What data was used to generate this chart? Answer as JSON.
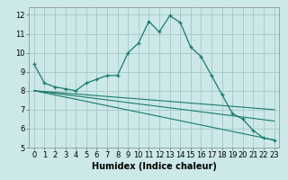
{
  "xlabel": "Humidex (Indice chaleur)",
  "ylabel": "",
  "background_color": "#cce8e8",
  "grid_color": "#aacccc",
  "line_color": "#1a7a6e",
  "xlim": [
    -0.5,
    23.5
  ],
  "ylim": [
    5,
    12.4
  ],
  "xticks": [
    0,
    1,
    2,
    3,
    4,
    5,
    6,
    7,
    8,
    9,
    10,
    11,
    12,
    13,
    14,
    15,
    16,
    17,
    18,
    19,
    20,
    21,
    22,
    23
  ],
  "yticks": [
    5,
    6,
    7,
    8,
    9,
    10,
    11,
    12
  ],
  "series1_x": [
    0,
    1,
    2,
    3,
    4,
    5,
    6,
    7,
    8,
    9,
    10,
    11,
    12,
    13,
    14,
    15,
    16,
    17,
    18,
    19,
    20,
    21,
    22,
    23
  ],
  "series1_y": [
    9.4,
    8.4,
    8.2,
    8.1,
    8.0,
    8.4,
    8.6,
    8.8,
    8.8,
    10.0,
    10.5,
    11.65,
    11.1,
    11.95,
    11.6,
    10.3,
    9.8,
    8.8,
    7.8,
    6.8,
    6.5,
    5.9,
    5.5,
    5.4
  ],
  "series2_x": [
    0,
    23
  ],
  "series2_y": [
    8.0,
    5.4
  ],
  "series3_x": [
    0,
    23
  ],
  "series3_y": [
    8.0,
    6.4
  ],
  "series4_x": [
    0,
    23
  ],
  "series4_y": [
    8.0,
    7.0
  ],
  "xlabel_fontsize": 7,
  "tick_fontsize": 6
}
